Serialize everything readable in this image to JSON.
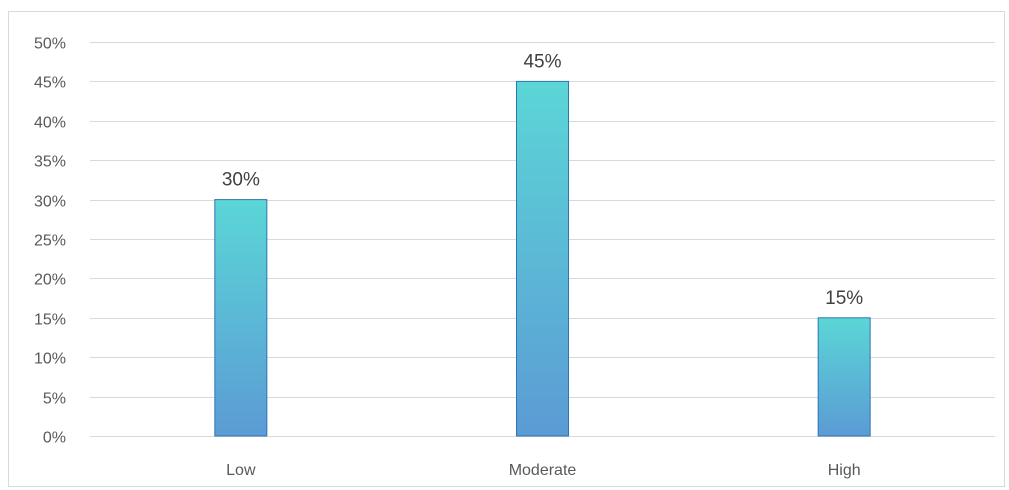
{
  "chart_data": {
    "type": "bar",
    "categories": [
      "Low",
      "Moderate",
      "High"
    ],
    "values": [
      30,
      45,
      15
    ],
    "data_labels": [
      "30%",
      "45%",
      "15%"
    ],
    "title": "",
    "xlabel": "",
    "ylabel": "",
    "ylim": [
      0,
      50
    ],
    "y_ticks": [
      0,
      5,
      10,
      15,
      20,
      25,
      30,
      35,
      40,
      45,
      50
    ],
    "y_tick_labels": [
      "0%",
      "5%",
      "10%",
      "15%",
      "20%",
      "25%",
      "30%",
      "35%",
      "40%",
      "45%",
      "50%"
    ],
    "grid": true,
    "legend": "none",
    "colors": {
      "bar_top": "#5bd6d6",
      "bar_bottom": "#5b9bd5",
      "bar_edge": "#2e75b6",
      "grid": "#d9d9d9"
    }
  }
}
